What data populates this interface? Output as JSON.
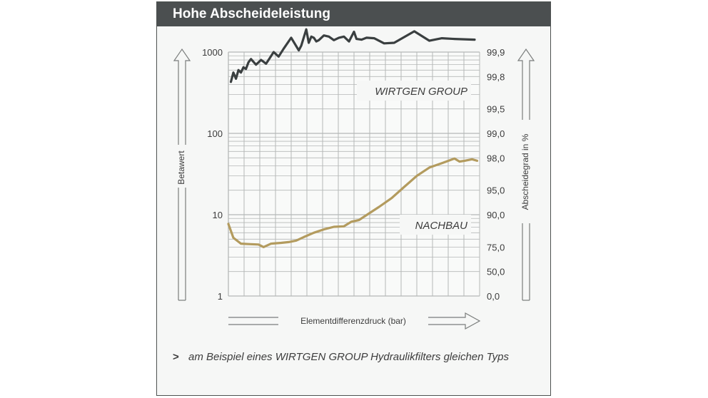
{
  "panel": {
    "title": "Hohe Abscheideleistung",
    "footnote_marker": ">",
    "footnote": "am Beispiel eines WIRTGEN GROUP Hydraulikfilters gleichen Typs"
  },
  "colors": {
    "header_bg": "#4b4f50",
    "wirtgen_line": "#3a3f40",
    "nachbau_line": "#b39b5e",
    "grid": "#b5b8b7"
  },
  "chart_data": {
    "type": "line",
    "xlabel": "Elementdifferenzdruck (bar)",
    "ylabel": "Betawert",
    "ylabel_right": "Abscheidegrad in %",
    "y_scale": "log",
    "ylim": [
      1,
      1000
    ],
    "y_ticks": [
      1,
      10,
      100,
      1000
    ],
    "y_tick_labels": [
      "1",
      "10",
      "100",
      "1000"
    ],
    "y_right_ticks": [
      {
        "label": "99,9",
        "beta": 1000
      },
      {
        "label": "99,8",
        "beta": 500
      },
      {
        "label": "99,5",
        "beta": 200
      },
      {
        "label": "99,0",
        "beta": 100
      },
      {
        "label": "98,0",
        "beta": 50
      },
      {
        "label": "95,0",
        "beta": 20
      },
      {
        "label": "90,0",
        "beta": 10
      },
      {
        "label": "75,0",
        "beta": 4
      },
      {
        "label": "50,0",
        "beta": 2
      },
      {
        "label": "0,0",
        "beta": 1
      }
    ],
    "xlim": [
      0,
      100
    ],
    "grid": true,
    "series": [
      {
        "name": "WIRTGEN GROUP",
        "color": "#3a3f40",
        "x": [
          1,
          2,
          3,
          4,
          5,
          6,
          7,
          8,
          9,
          11,
          13,
          15,
          16,
          18,
          20,
          22,
          25,
          28,
          29,
          31,
          32,
          33,
          34,
          35,
          36,
          38,
          40,
          42,
          44,
          46,
          48,
          50,
          51,
          53,
          55,
          58,
          62,
          66,
          74,
          80,
          85,
          90,
          98
        ],
        "y": [
          430,
          560,
          470,
          600,
          560,
          650,
          620,
          750,
          820,
          700,
          800,
          720,
          800,
          1000,
          880,
          1100,
          1500,
          1050,
          1200,
          1900,
          1300,
          1550,
          1500,
          1350,
          1400,
          1600,
          1550,
          1400,
          1500,
          1550,
          1350,
          1780,
          1450,
          1420,
          1500,
          1480,
          1280,
          1300,
          1800,
          1380,
          1480,
          1450,
          1420
        ]
      },
      {
        "name": "NACHBAU",
        "color": "#b39b5e",
        "x": [
          0,
          2,
          5,
          8,
          12,
          14,
          17,
          21,
          24,
          27,
          30,
          34,
          38,
          42,
          46,
          49,
          52,
          55,
          60,
          65,
          70,
          75,
          80,
          85,
          90,
          92,
          94,
          97,
          99
        ],
        "y": [
          7.7,
          5.2,
          4.4,
          4.35,
          4.3,
          4.0,
          4.4,
          4.5,
          4.6,
          4.8,
          5.3,
          6.0,
          6.6,
          7.1,
          7.2,
          8.2,
          8.6,
          9.9,
          12.5,
          16.0,
          22.0,
          30.0,
          38.0,
          43.0,
          49.0,
          45.0,
          46.0,
          48.0,
          46.0
        ]
      }
    ]
  }
}
